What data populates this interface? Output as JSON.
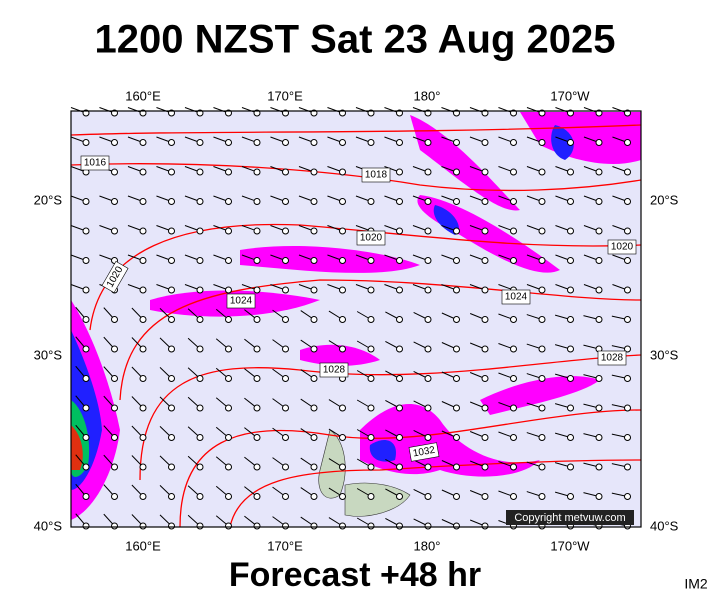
{
  "header": {
    "title": "1200 NZST Sat 23 Aug 2025"
  },
  "footer": {
    "forecast": "Forecast +48 hr",
    "code": "IM2"
  },
  "map": {
    "lon_labels": [
      "160°E",
      "170°E",
      "180°",
      "170°W"
    ],
    "lat_labels": [
      "20°S",
      "30°S",
      "40°S"
    ],
    "isobar_labels": [
      "1016",
      "1018",
      "1020",
      "1020",
      "1020",
      "1024",
      "1024",
      "1028",
      "1028",
      "1032"
    ],
    "copyright": "Copyright metvuw.com"
  }
}
